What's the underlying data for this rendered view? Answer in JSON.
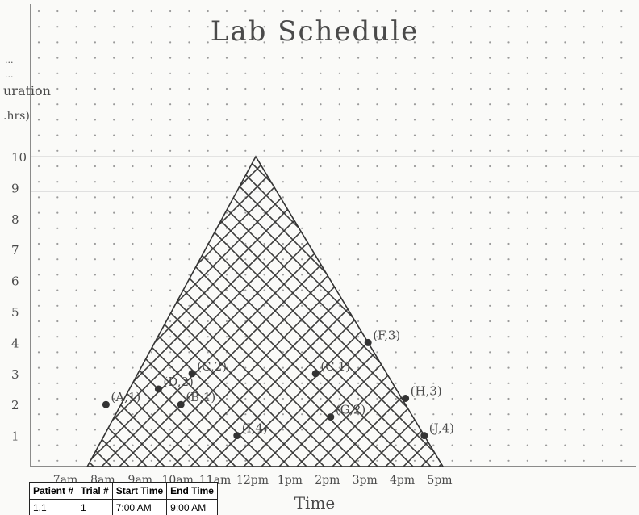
{
  "chart_data": {
    "type": "scatter",
    "title": "Lab Schedule",
    "xlabel": "Time",
    "ylabel": "Duration (hrs)",
    "ylabel_lines": [
      "...",
      "...",
      "uration",
      ".hrs)"
    ],
    "x_ticks": [
      "7am",
      "8am",
      "9am",
      "10am",
      "11am",
      "12pm",
      "1pm",
      "2pm",
      "3pm",
      "4pm",
      "5pm"
    ],
    "y_ticks": [
      1,
      2,
      3,
      4,
      5,
      6,
      7,
      8,
      9,
      10
    ],
    "xlim": [
      7,
      17
    ],
    "ylim": [
      0,
      10
    ],
    "grid": "dotted",
    "shaded_region": {
      "shape": "triangle",
      "vertices": [
        [
          7.5,
          0
        ],
        [
          12,
          10
        ],
        [
          17,
          0
        ]
      ],
      "fill": "crosshatch"
    },
    "points": [
      {
        "label": "(A,1)",
        "x": 8.0,
        "y": 2.0
      },
      {
        "label": "(D,2)",
        "x": 9.4,
        "y": 2.5
      },
      {
        "label": "(C,2)",
        "x": 10.3,
        "y": 3.0
      },
      {
        "label": "(B,1)",
        "x": 10.0,
        "y": 2.0
      },
      {
        "label": "(I,4)",
        "x": 11.5,
        "y": 1.0
      },
      {
        "label": "(C,1)",
        "x": 13.6,
        "y": 3.0
      },
      {
        "label": "(G,2)",
        "x": 14.0,
        "y": 1.6
      },
      {
        "label": "(F,3)",
        "x": 15.0,
        "y": 4.0
      },
      {
        "label": "(H,3)",
        "x": 16.0,
        "y": 2.2
      },
      {
        "label": "(J,4)",
        "x": 16.5,
        "y": 1.0
      }
    ]
  },
  "table": {
    "headers": [
      "Patient #",
      "Trial #",
      "Start Time",
      "End Time"
    ],
    "rows": [
      [
        "1.1",
        "1",
        "7:00 AM",
        "9:00 AM"
      ]
    ]
  }
}
